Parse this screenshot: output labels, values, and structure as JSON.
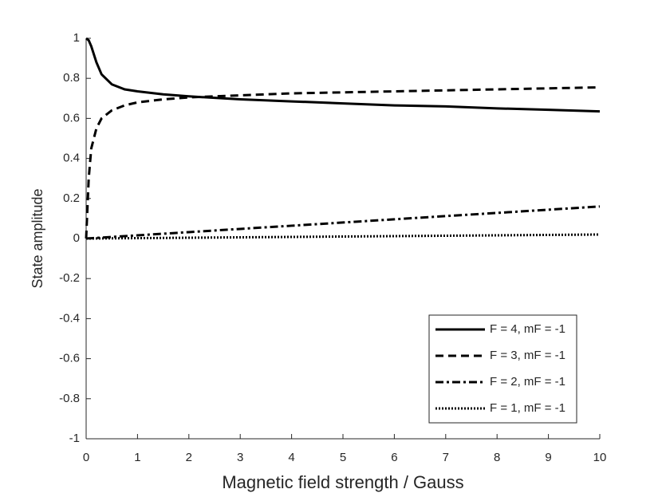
{
  "chart_data": {
    "type": "line",
    "xlabel": "Magnetic field strength / Gauss",
    "ylabel": "State amplitude",
    "x": [
      0,
      0.05,
      0.1,
      0.2,
      0.3,
      0.5,
      0.75,
      1,
      1.5,
      2,
      3,
      4,
      5,
      6,
      7,
      8,
      9,
      10
    ],
    "series": [
      {
        "name": "F = 4, mF = -1",
        "color": "#000000",
        "linestyle": "solid",
        "values": [
          1,
          0.99,
          0.96,
          0.88,
          0.82,
          0.77,
          0.745,
          0.735,
          0.72,
          0.71,
          0.695,
          0.685,
          0.675,
          0.665,
          0.66,
          0.65,
          0.643,
          0.635
        ]
      },
      {
        "name": "F = 3, mF = -1",
        "color": "#000000",
        "linestyle": "dashed",
        "values": [
          0,
          0.3,
          0.45,
          0.55,
          0.6,
          0.64,
          0.665,
          0.68,
          0.695,
          0.705,
          0.715,
          0.725,
          0.73,
          0.735,
          0.74,
          0.745,
          0.75,
          0.755
        ]
      },
      {
        "name": "F = 2, mF = -1",
        "color": "#000000",
        "linestyle": "dashdot",
        "values": [
          0,
          0.0008,
          0.0016,
          0.0032,
          0.0048,
          0.008,
          0.012,
          0.016,
          0.024,
          0.032,
          0.048,
          0.064,
          0.08,
          0.096,
          0.112,
          0.128,
          0.144,
          0.16
        ]
      },
      {
        "name": "F = 1, mF = -1",
        "color": "#000000",
        "linestyle": "dotted",
        "values": [
          0,
          0.0001,
          0.0002,
          0.0004,
          0.0006,
          0.001,
          0.0015,
          0.002,
          0.003,
          0.004,
          0.006,
          0.008,
          0.01,
          0.012,
          0.014,
          0.016,
          0.018,
          0.02
        ]
      }
    ],
    "xlim": [
      0,
      10
    ],
    "xticks": [
      0,
      1,
      2,
      3,
      4,
      5,
      6,
      7,
      8,
      9,
      10
    ],
    "ylim": [
      -1,
      1
    ],
    "yticks": [
      -1,
      -0.8,
      -0.6,
      -0.4,
      -0.2,
      0,
      0.2,
      0.4,
      0.6,
      0.8,
      1
    ],
    "legend": "lower right"
  }
}
